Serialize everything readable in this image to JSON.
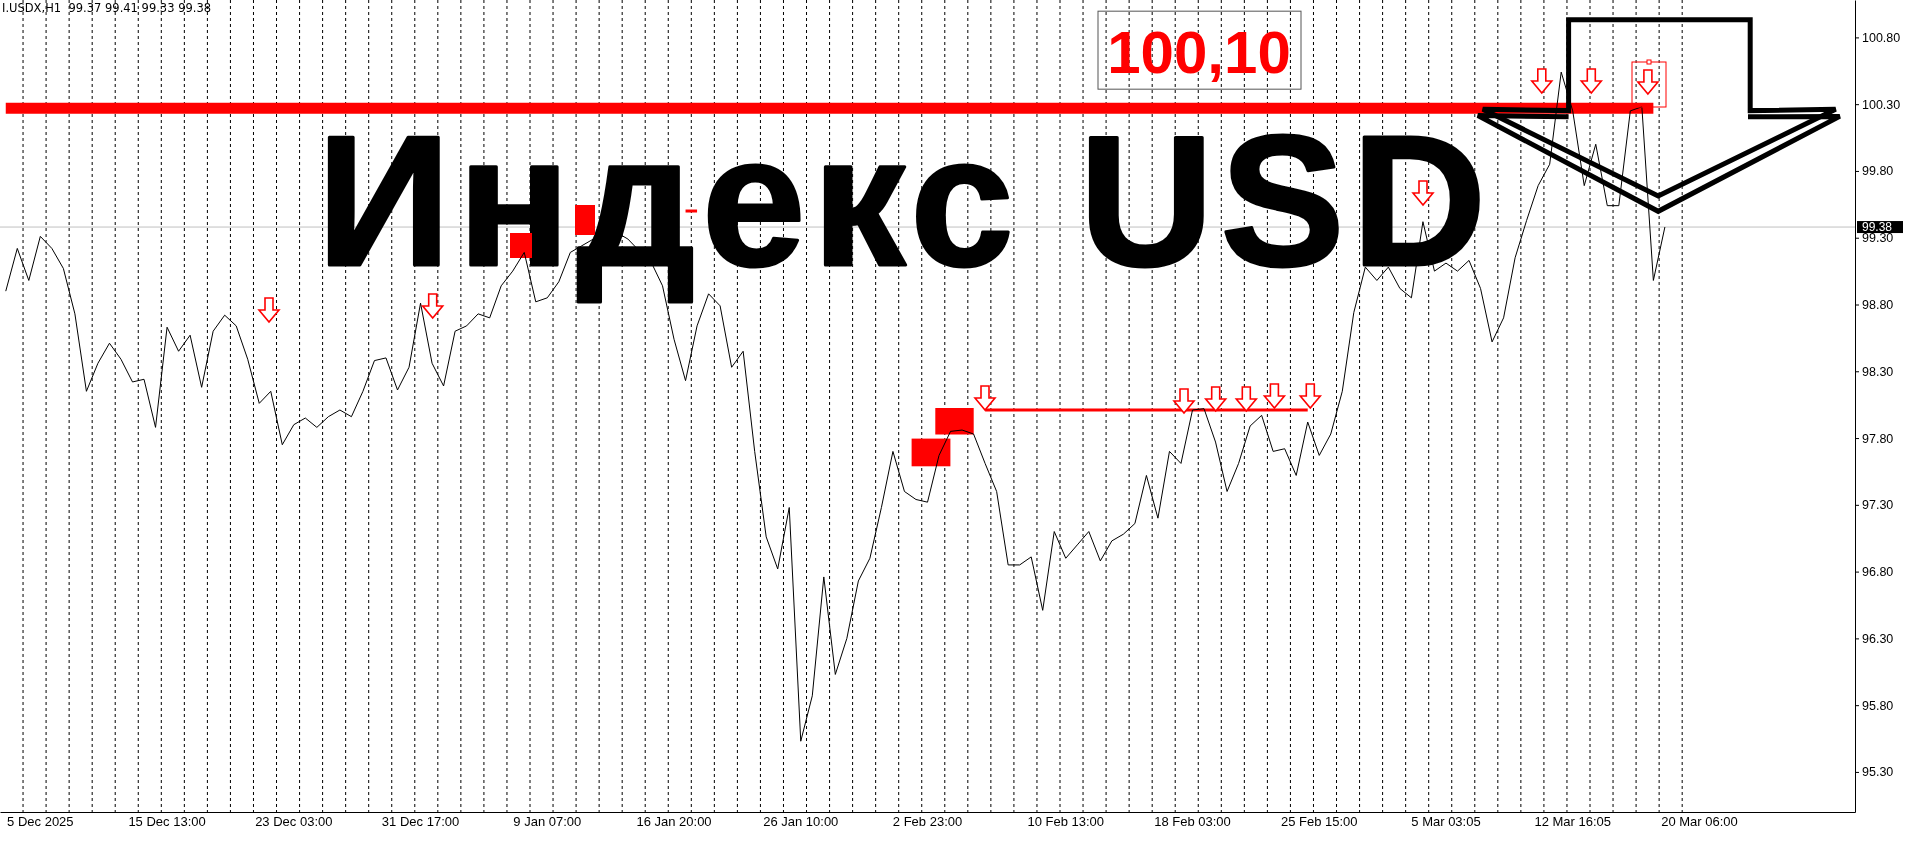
{
  "chart_data": {
    "type": "line",
    "title": "Индекс USD",
    "subtitle": "I.USDX,H1  99.37 99.41 99.33 99.38",
    "categories": [
      null,
      null,
      null,
      "5 Dec 2025",
      null,
      null,
      null,
      null,
      null,
      null,
      null,
      null,
      null,
      null,
      "15 Dec 13:00",
      null,
      null,
      null,
      null,
      null,
      null,
      null,
      null,
      null,
      null,
      "23 Dec 03:00",
      null,
      null,
      null,
      null,
      null,
      null,
      null,
      null,
      null,
      null,
      "31 Dec 17:00",
      null,
      null,
      null,
      null,
      null,
      null,
      null,
      null,
      null,
      null,
      "9 Jan 07:00",
      null,
      null,
      null,
      null,
      null,
      null,
      null,
      null,
      null,
      null,
      "16 Jan 20:00",
      null,
      null,
      null,
      null,
      null,
      null,
      null,
      null,
      null,
      null,
      "26 Jan 10:00",
      null,
      null,
      null,
      null,
      null,
      null,
      null,
      null,
      null,
      null,
      "2 Feb 23:00",
      null,
      null,
      null,
      null,
      null,
      null,
      null,
      null,
      null,
      null,
      null,
      "10 Feb 13:00",
      null,
      null,
      null,
      null,
      null,
      null,
      null,
      null,
      null,
      null,
      "18 Feb 03:00",
      null,
      null,
      null,
      null,
      null,
      null,
      null,
      null,
      null,
      null,
      "25 Feb 15:00",
      null,
      null,
      null,
      null,
      null,
      null,
      null,
      null,
      null,
      null,
      "5 Mar 03:05",
      null,
      null,
      null,
      null,
      null,
      null,
      null,
      null,
      null,
      null,
      "12 Mar 16:05",
      null,
      null,
      null,
      null,
      null,
      null,
      null,
      null,
      null,
      null,
      "20 Mar 06:00",
      null,
      null,
      null,
      null,
      null,
      null,
      null,
      null,
      null,
      null,
      null,
      null,
      null
    ],
    "ylim": [
      95.0,
      101.08
    ],
    "grid": "x",
    "yticks": [
      {
        "value": 95.3,
        "label": "95.30"
      },
      {
        "value": 95.8,
        "label": "95.80"
      },
      {
        "value": 96.3,
        "label": "96.30"
      },
      {
        "value": 96.8,
        "label": "96.80"
      },
      {
        "value": 97.3,
        "label": "97.30"
      },
      {
        "value": 97.8,
        "label": "97.80"
      },
      {
        "value": 98.3,
        "label": "98.30"
      },
      {
        "value": 98.8,
        "label": "98.80"
      },
      {
        "value": 99.3,
        "label": "99.30"
      },
      {
        "value": 99.8,
        "label": "99.80"
      },
      {
        "value": 100.3,
        "label": "100.30"
      },
      {
        "value": 100.8,
        "label": "100.80"
      }
    ],
    "series": [
      {
        "color": "#000000",
        "values": [
          98.9,
          99.22,
          98.98,
          99.31,
          99.22,
          99.07,
          98.73,
          98.15,
          98.36,
          98.51,
          98.39,
          98.22,
          98.24,
          97.88,
          98.63,
          98.45,
          98.57,
          98.18,
          98.6,
          98.72,
          98.64,
          98.39,
          98.06,
          98.15,
          97.75,
          97.9,
          97.95,
          97.88,
          97.96,
          98.01,
          97.96,
          98.15,
          98.38,
          98.4,
          98.16,
          98.33,
          98.81,
          98.36,
          98.19,
          98.6,
          98.64,
          98.73,
          98.7,
          98.94,
          99.05,
          99.19,
          98.82,
          98.85,
          98.97,
          99.19,
          99.24,
          99.29,
          99.33,
          99.34,
          99.29,
          99.2,
          99.12,
          98.94,
          98.54,
          98.23,
          98.64,
          98.88,
          98.79,
          98.33,
          98.45,
          97.7,
          97.06,
          96.82,
          97.28,
          95.53,
          95.87,
          96.76,
          96.03,
          96.3,
          96.73,
          96.9,
          97.28,
          97.7,
          97.4,
          97.34,
          97.32,
          97.67,
          97.85,
          97.86,
          97.83,
          97.61,
          97.4,
          96.85,
          96.85,
          96.91,
          96.51,
          97.1,
          96.9,
          97.0,
          97.1,
          96.88,
          97.03,
          97.08,
          97.16,
          97.52,
          97.2,
          97.7,
          97.61,
          98.01,
          98.02,
          97.77,
          97.4,
          97.61,
          97.89,
          97.97,
          97.7,
          97.72,
          97.52,
          97.92,
          97.67,
          97.83,
          98.15,
          98.74,
          99.08,
          98.98,
          99.08,
          98.92,
          98.85,
          99.42,
          99.05,
          99.11,
          99.05,
          99.13,
          98.92,
          98.52,
          98.7,
          99.15,
          99.43,
          99.69,
          99.85,
          100.54,
          100.25,
          99.69,
          100.0,
          99.54,
          99.54,
          100.25,
          100.28,
          98.98,
          99.38,
          null,
          null,
          null,
          null,
          null,
          null,
          null,
          null,
          null,
          null,
          null,
          null,
          null,
          null,
          null,
          null
        ]
      },
      {
        "color": "#ff0000",
        "values": [
          100.27,
          100.27,
          100.27,
          100.27,
          100.27,
          100.27,
          100.27,
          100.27,
          100.27,
          100.27,
          100.27,
          100.27,
          100.27,
          100.27,
          100.27,
          100.27,
          100.27,
          100.27,
          100.27,
          100.27,
          100.27,
          100.27,
          100.27,
          100.27,
          100.27,
          100.27,
          100.27,
          100.27,
          100.27,
          100.27,
          100.27,
          100.27,
          100.27,
          100.27,
          100.27,
          100.27,
          100.27,
          100.27,
          100.27,
          100.27,
          100.27,
          100.27,
          100.27,
          100.27,
          100.27,
          100.27,
          100.27,
          100.27,
          100.27,
          100.27,
          100.27,
          100.27,
          100.27,
          100.27,
          100.27,
          100.27,
          100.27,
          100.27,
          100.27,
          100.27,
          100.27,
          100.27,
          100.27,
          100.27,
          100.27,
          100.27,
          100.27,
          100.27,
          100.27,
          100.27,
          100.27,
          100.27,
          100.27,
          100.27,
          100.27,
          100.27,
          100.27,
          100.27,
          100.27,
          100.27,
          100.27,
          100.27,
          100.27,
          100.27,
          100.27,
          100.27,
          100.27,
          100.27,
          100.27,
          100.27,
          100.27,
          100.27,
          100.27,
          100.27,
          100.27,
          100.27,
          100.27,
          100.27,
          100.27,
          100.27,
          100.27,
          100.27,
          100.27,
          100.27,
          100.27,
          100.27,
          100.27,
          100.27,
          100.27,
          100.27,
          100.27,
          100.27,
          100.27,
          100.27,
          100.27,
          100.27,
          100.27,
          100.27,
          100.27,
          100.27,
          100.27,
          100.27,
          100.27,
          100.27,
          100.27,
          100.27,
          100.27,
          100.27,
          100.27,
          100.27,
          100.27,
          100.27,
          100.27,
          100.27,
          100.27,
          100.27,
          100.27,
          100.27,
          100.27,
          100.27,
          100.27,
          100.27,
          100.27,
          100.27,
          null,
          null,
          null,
          null,
          null,
          null,
          null,
          null,
          null,
          null,
          null,
          null,
          null,
          null,
          null,
          null,
          null
        ]
      },
      {
        "color": "#ff0000",
        "values": [
          null,
          null,
          null,
          null,
          null,
          null,
          null,
          null,
          null,
          null,
          null,
          null,
          null,
          null,
          null,
          null,
          null,
          null,
          null,
          null,
          null,
          null,
          null,
          null,
          null,
          null,
          null,
          null,
          null,
          null,
          null,
          null,
          null,
          null,
          null,
          null,
          null,
          null,
          null,
          null,
          null,
          null,
          null,
          null,
          null,
          null,
          null,
          null,
          null,
          null,
          null,
          null,
          null,
          null,
          null,
          null,
          null,
          null,
          null,
          null,
          null,
          null,
          null,
          null,
          null,
          null,
          null,
          null,
          null,
          null,
          null,
          null,
          null,
          null,
          null,
          null,
          null,
          null,
          null,
          null,
          null,
          null,
          null,
          null,
          null,
          98.01,
          98.01,
          98.01,
          98.01,
          98.01,
          98.01,
          98.01,
          98.01,
          98.01,
          98.01,
          98.01,
          98.01,
          98.01,
          98.01,
          98.01,
          98.01,
          98.01,
          98.01,
          98.01,
          98.01,
          98.01,
          98.01,
          98.01,
          98.01,
          98.01,
          98.01,
          98.01,
          98.01,
          98.01,
          null,
          null,
          null,
          null,
          null,
          null,
          null,
          null,
          null,
          null,
          null,
          null,
          null,
          null,
          null,
          null,
          null,
          null,
          null,
          null,
          null,
          null,
          null,
          null,
          null,
          null,
          null,
          null,
          null,
          null,
          null,
          null,
          null,
          null,
          null,
          null,
          null,
          null,
          null,
          null,
          null,
          null,
          null,
          null,
          null,
          null,
          null
        ]
      },
      {
        "color": "#ff0000",
        "values": [
          null,
          null,
          null,
          null,
          null,
          null,
          null,
          null,
          null,
          null,
          null,
          null,
          null,
          null,
          null,
          null,
          null,
          null,
          null,
          null,
          null,
          null,
          null,
          null,
          null,
          null,
          null,
          null,
          null,
          null,
          null,
          null,
          null,
          null,
          null,
          null,
          null,
          null,
          null,
          null,
          null,
          null,
          null,
          null,
          null,
          null,
          null,
          null,
          null,
          null,
          null,
          null,
          null,
          null,
          null,
          null,
          null,
          null,
          null,
          99.5,
          99.5,
          null,
          null,
          null,
          null,
          null,
          null,
          null,
          null,
          null,
          null,
          null,
          null,
          null,
          null,
          null,
          null,
          null,
          null,
          null,
          null,
          null,
          null,
          null,
          null,
          null,
          null,
          null,
          null,
          null,
          null,
          null,
          null,
          null,
          null,
          null,
          null,
          null,
          null,
          null,
          null,
          null,
          null,
          null,
          null,
          null,
          null,
          null,
          null,
          null,
          null,
          null,
          null,
          null,
          null,
          null,
          null,
          null,
          null,
          null,
          null,
          null,
          null,
          null,
          null,
          null,
          null,
          null,
          null,
          null,
          null,
          null,
          null,
          null,
          null,
          null,
          null,
          null,
          null,
          null,
          null,
          null,
          null,
          null,
          null,
          null,
          null,
          null,
          null,
          null,
          null,
          null,
          null,
          null,
          null,
          null,
          null,
          null,
          null,
          null,
          null
        ]
      }
    ],
    "ref_lines": [
      {
        "axis": "y",
        "value": 99.38,
        "label": "99.38",
        "color": "#c0c0c0"
      }
    ],
    "annotations": [
      {
        "text": "100,10",
        "y": 100.27
      }
    ]
  }
}
